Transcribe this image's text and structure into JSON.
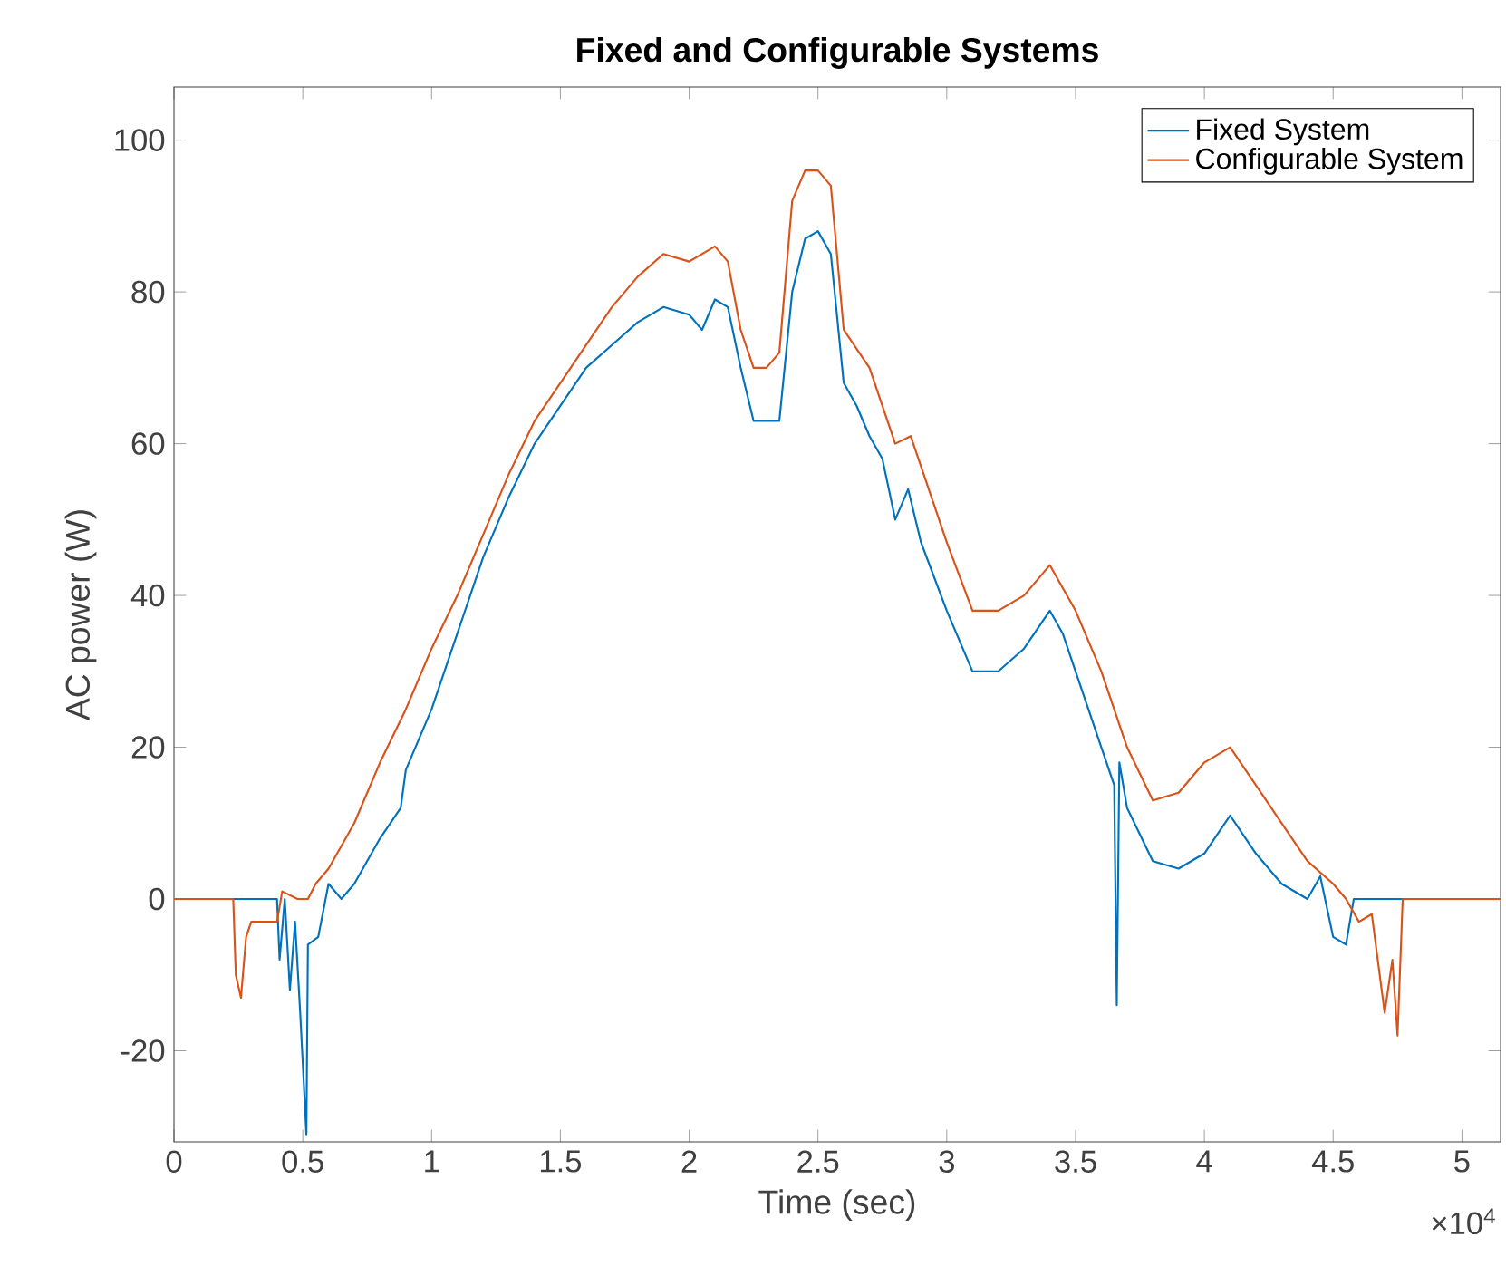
{
  "chart_data": {
    "type": "line",
    "title": "Fixed and Configurable Systems",
    "xlabel": "Time (sec)",
    "ylabel": "AC power (W)",
    "annotations": [
      "×10$^{4}$"
    ],
    "xlim": [
      0,
      5.15
    ],
    "ylim": [
      -32,
      107
    ],
    "xticks": [
      0,
      0.5,
      1,
      1.5,
      2,
      2.5,
      3,
      3.5,
      4,
      4.5,
      5
    ],
    "yticks": [
      -20,
      0,
      20,
      40,
      60,
      80,
      100
    ],
    "legend": "top right",
    "grid": false,
    "line_style": "solid",
    "marker": "none",
    "series": [
      {
        "name": "Fixed System",
        "color": "#0072bd",
        "x": [
          0,
          0.4,
          0.41,
          0.43,
          0.45,
          0.47,
          0.49,
          0.514,
          0.52,
          0.56,
          0.6,
          0.65,
          0.7,
          0.8,
          0.88,
          0.9,
          1.0,
          1.1,
          1.2,
          1.3,
          1.4,
          1.5,
          1.6,
          1.7,
          1.8,
          1.9,
          2.0,
          2.05,
          2.1,
          2.15,
          2.2,
          2.25,
          2.3,
          2.35,
          2.4,
          2.45,
          2.5,
          2.55,
          2.6,
          2.65,
          2.7,
          2.75,
          2.8,
          2.85,
          2.9,
          3.0,
          3.1,
          3.2,
          3.3,
          3.4,
          3.45,
          3.5,
          3.6,
          3.65,
          3.66,
          3.67,
          3.7,
          3.8,
          3.9,
          4.0,
          4.1,
          4.2,
          4.3,
          4.4,
          4.45,
          4.5,
          4.55,
          4.58,
          5.15
        ],
        "values": [
          0,
          0,
          -8,
          0,
          -12,
          -3,
          -15,
          -31,
          -6,
          -5,
          2,
          0,
          2,
          8,
          12,
          17,
          25,
          35,
          45,
          53,
          60,
          65,
          70,
          73,
          76,
          78,
          77,
          75,
          79,
          78,
          70,
          63,
          63,
          63,
          80,
          87,
          88,
          85,
          68,
          65,
          61,
          58,
          50,
          54,
          47,
          38,
          30,
          30,
          33,
          38,
          35,
          30,
          20,
          15,
          -14,
          18,
          12,
          5,
          4,
          6,
          11,
          6,
          2,
          0,
          3,
          -5,
          -6,
          0,
          0
        ]
      },
      {
        "name": "Configurable System",
        "color": "#d95319",
        "x": [
          0,
          0.23,
          0.24,
          0.26,
          0.28,
          0.3,
          0.35,
          0.4,
          0.42,
          0.48,
          0.52,
          0.55,
          0.6,
          0.7,
          0.8,
          0.9,
          1.0,
          1.1,
          1.2,
          1.3,
          1.4,
          1.5,
          1.6,
          1.7,
          1.8,
          1.9,
          2.0,
          2.1,
          2.15,
          2.2,
          2.25,
          2.3,
          2.35,
          2.4,
          2.45,
          2.5,
          2.55,
          2.6,
          2.7,
          2.8,
          2.86,
          2.9,
          3.0,
          3.1,
          3.2,
          3.3,
          3.4,
          3.45,
          3.5,
          3.6,
          3.7,
          3.8,
          3.9,
          4.0,
          4.1,
          4.2,
          4.3,
          4.4,
          4.5,
          4.55,
          4.6,
          4.65,
          4.7,
          4.73,
          4.75,
          4.77,
          5.15
        ],
        "values": [
          0,
          0,
          -10,
          -13,
          -5,
          -3,
          -3,
          -3,
          1,
          0,
          0,
          2,
          4,
          10,
          18,
          25,
          33,
          40,
          48,
          56,
          63,
          68,
          73,
          78,
          82,
          85,
          84,
          86,
          84,
          75,
          70,
          70,
          72,
          92,
          96,
          96,
          94,
          75,
          70,
          60,
          61,
          57,
          47,
          38,
          38,
          40,
          44,
          41,
          38,
          30,
          20,
          13,
          14,
          18,
          20,
          15,
          10,
          5,
          2,
          0,
          -3,
          -2,
          -15,
          -8,
          -18,
          0,
          0
        ]
      }
    ]
  }
}
